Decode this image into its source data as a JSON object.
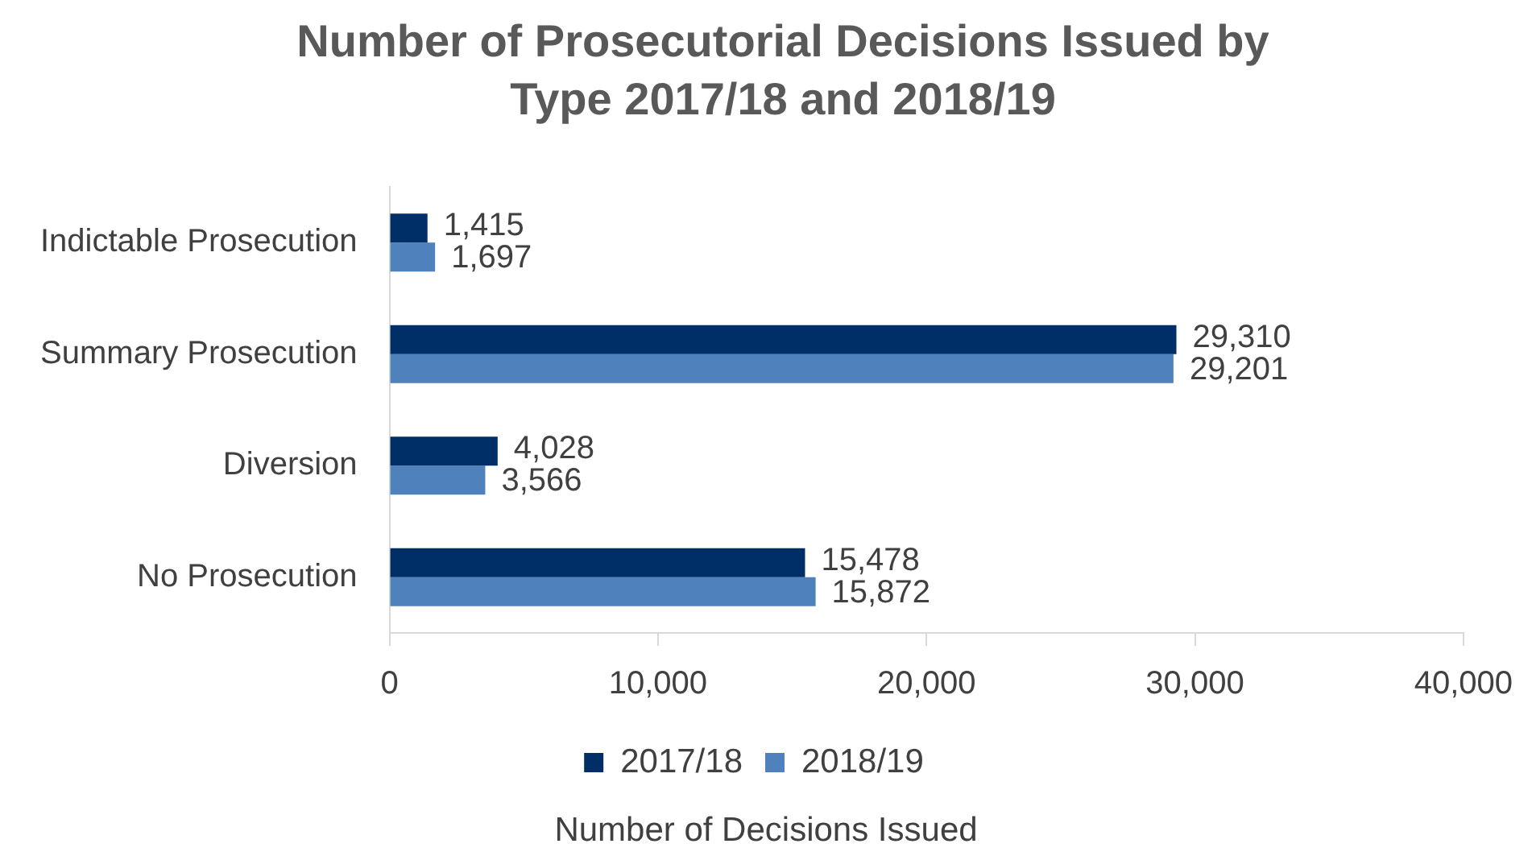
{
  "chart_data": {
    "type": "bar",
    "orientation": "horizontal",
    "title": "Number of Prosecutorial Decisions Issued by Type  2017/18 and  2018/19",
    "xlabel": "Number of Decisions Issued",
    "categories": [
      "Indictable Prosecution",
      "Summary Prosecution",
      "Diversion",
      "No Prosecution"
    ],
    "series": [
      {
        "name": "2017/18",
        "color": "#002f67",
        "values": [
          1415,
          29310,
          4028,
          15478
        ],
        "value_labels": [
          "1,415",
          "29,310",
          "4,028",
          "15,478"
        ]
      },
      {
        "name": "2018/19",
        "color": "#4f81bd",
        "values": [
          1697,
          29201,
          3566,
          15872
        ],
        "value_labels": [
          "1,697",
          "29,201",
          "3,566",
          "15,872"
        ]
      }
    ],
    "xlim": [
      0,
      40000
    ],
    "xticks": [
      {
        "value": 0,
        "label": "0"
      },
      {
        "value": 10000,
        "label": "10,000"
      },
      {
        "value": 20000,
        "label": "20,000"
      },
      {
        "value": 30000,
        "label": "30,000"
      },
      {
        "value": 40000,
        "label": "40,000"
      }
    ],
    "grid": false,
    "legend": "bottom"
  }
}
